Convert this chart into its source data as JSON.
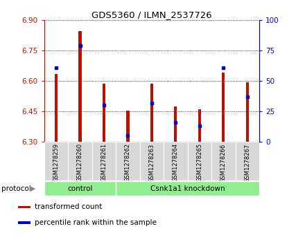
{
  "title": "GDS5360 / ILMN_2537726",
  "samples": [
    "GSM1278259",
    "GSM1278260",
    "GSM1278261",
    "GSM1278262",
    "GSM1278263",
    "GSM1278264",
    "GSM1278265",
    "GSM1278266",
    "GSM1278267"
  ],
  "red_values": [
    6.635,
    6.845,
    6.585,
    6.455,
    6.585,
    6.475,
    6.46,
    6.64,
    6.595
  ],
  "blue_values": [
    61,
    79,
    30,
    5,
    32,
    16,
    13,
    61,
    37
  ],
  "ylim_left": [
    6.3,
    6.9
  ],
  "ylim_right": [
    0,
    100
  ],
  "yticks_left": [
    6.3,
    6.45,
    6.6,
    6.75,
    6.9
  ],
  "yticks_right": [
    0,
    25,
    50,
    75,
    100
  ],
  "red_color": "#BB1100",
  "blue_color": "#0000CC",
  "bar_bottom": 6.3,
  "protocol_groups": [
    {
      "label": "control",
      "start": 0,
      "end": 3
    },
    {
      "label": "Csnk1a1 knockdown",
      "start": 3,
      "end": 9
    }
  ],
  "legend_items": [
    {
      "label": "transformed count",
      "color": "#BB1100"
    },
    {
      "label": "percentile rank within the sample",
      "color": "#0000CC"
    }
  ],
  "plot_bg": "#FFFFFF",
  "protocol_bg": "#90EE90",
  "sample_box_color": "#D8D8D8"
}
